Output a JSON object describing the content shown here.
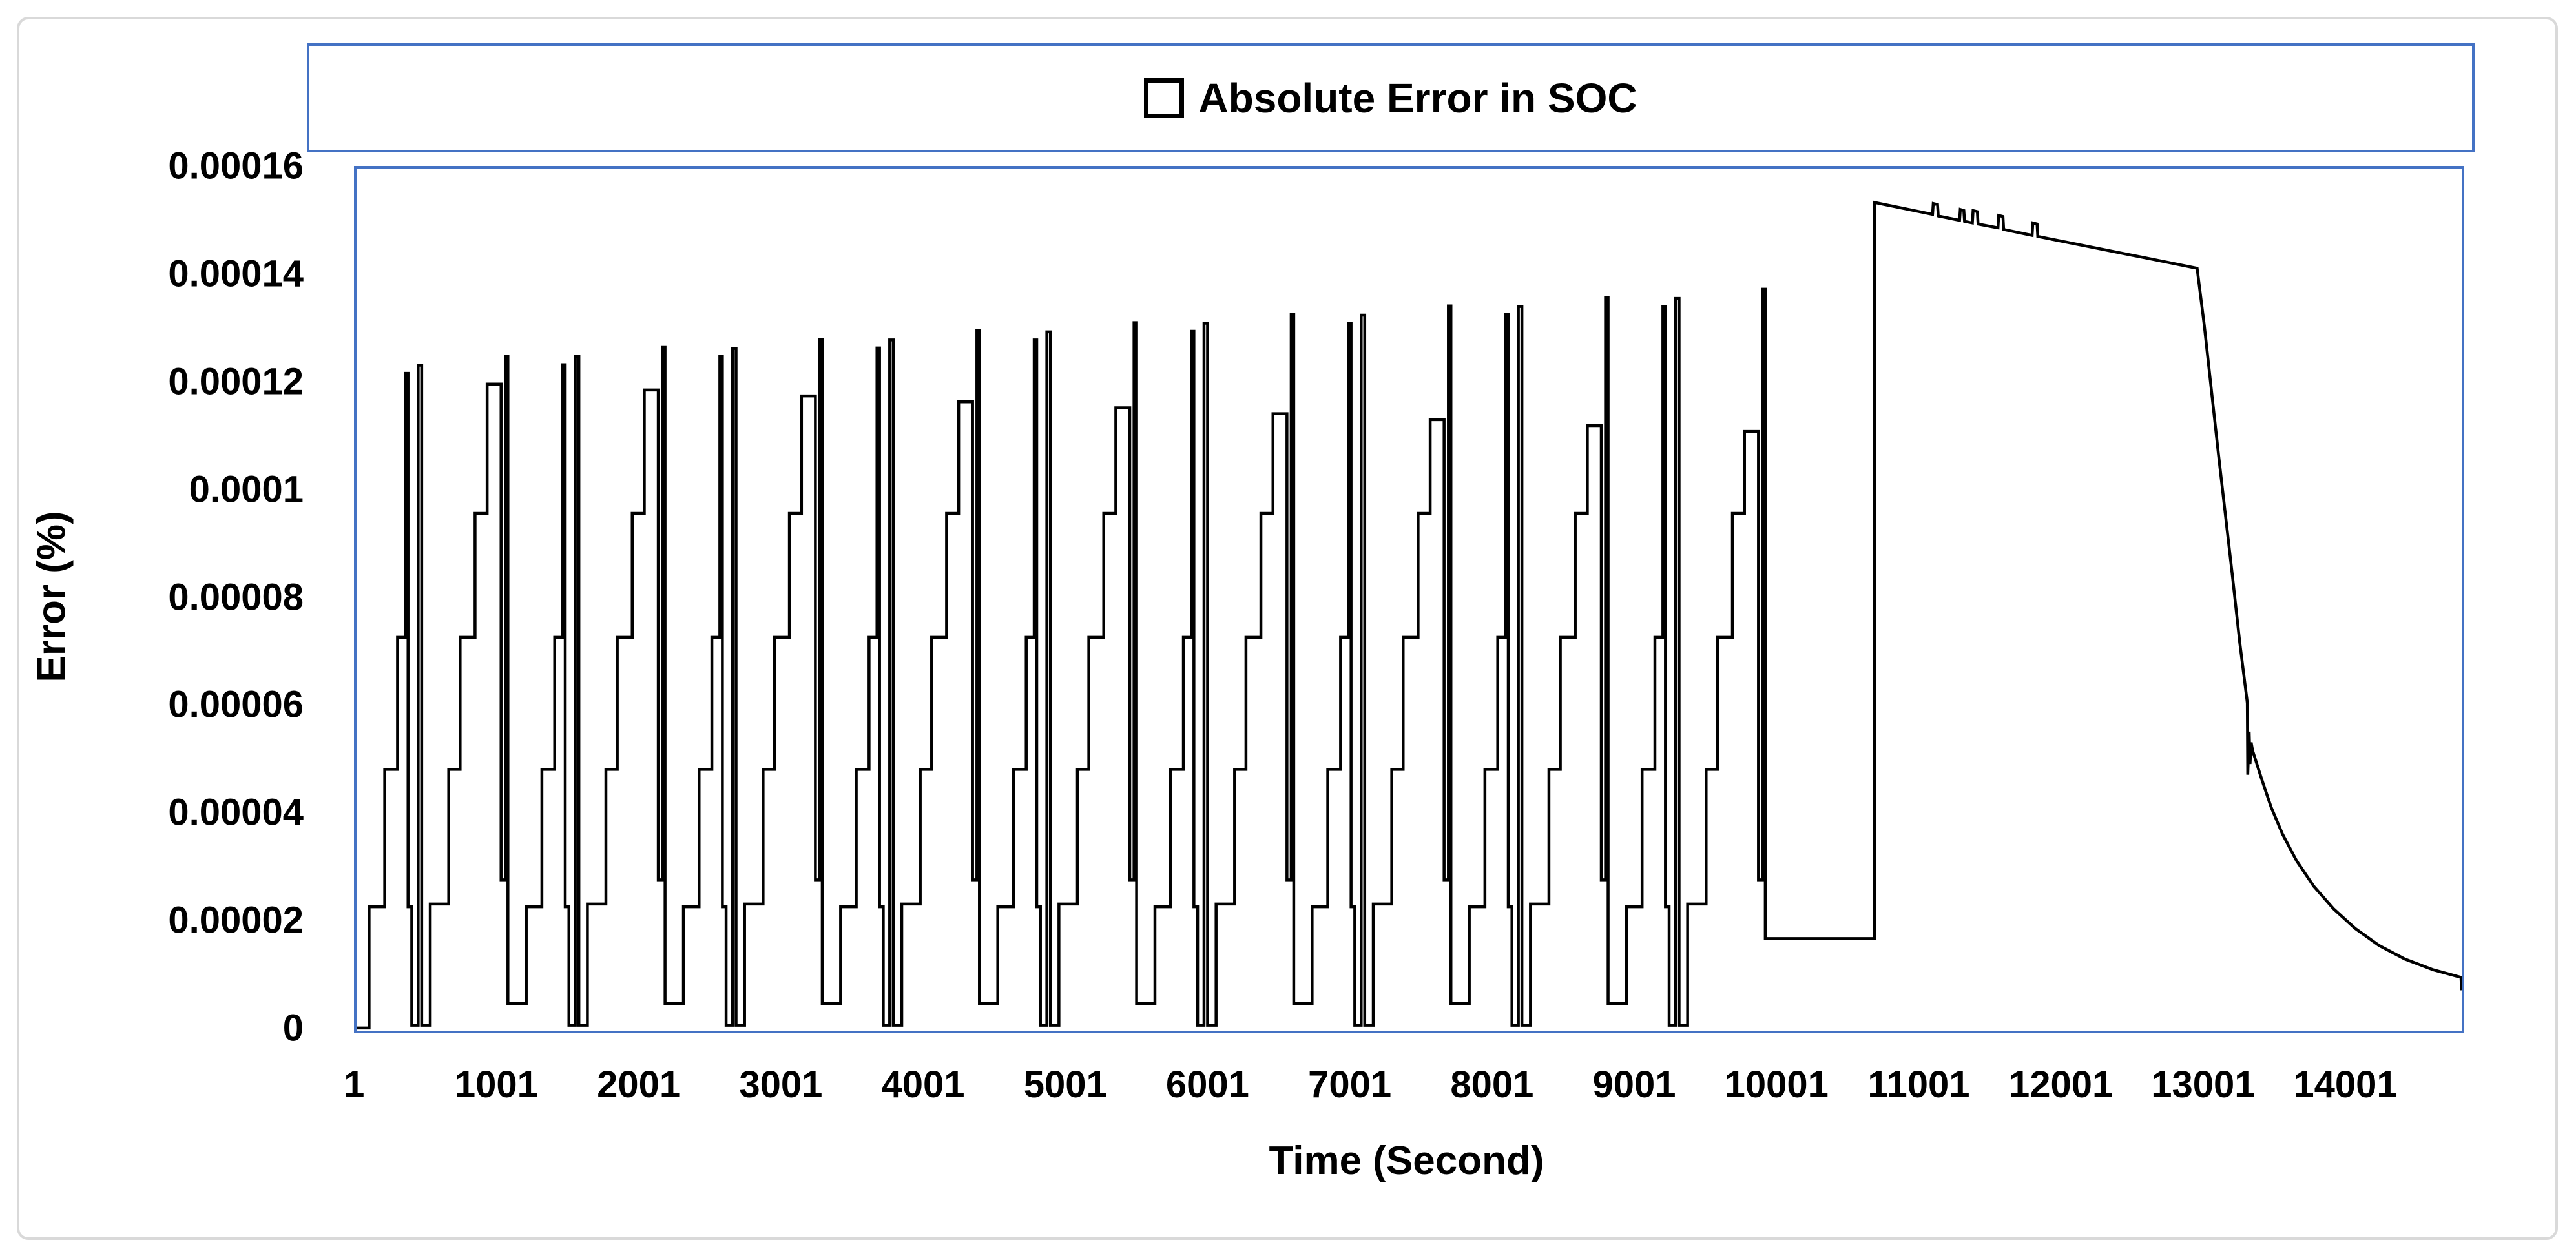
{
  "figure": {
    "background_color": "#ffffff",
    "frame_border_color": "#d9d9d9",
    "accent_color": "#4472C4",
    "line_color": "#000000",
    "text_color": "#000000"
  },
  "legend": {
    "marker": "open-square",
    "label": "Absolute Error in SOC"
  },
  "axes": {
    "y_title": "Error (%)",
    "x_title": "Time (Second)",
    "y_max_mu": 160,
    "x_max_s": 14800,
    "y_ticks": [
      {
        "label": "0",
        "mu": 0
      },
      {
        "label": "0.00002",
        "mu": 20
      },
      {
        "label": "0.00004",
        "mu": 40
      },
      {
        "label": "0.00006",
        "mu": 60
      },
      {
        "label": "0.00008",
        "mu": 80
      },
      {
        "label": "0.0001",
        "mu": 100
      },
      {
        "label": "0.00012",
        "mu": 120
      },
      {
        "label": "0.00014",
        "mu": 140
      },
      {
        "label": "0.00016",
        "mu": 160
      }
    ],
    "x_ticks": [
      {
        "label": "1",
        "s": 1
      },
      {
        "label": "1001",
        "s": 1001
      },
      {
        "label": "2001",
        "s": 2001
      },
      {
        "label": "3001",
        "s": 3001
      },
      {
        "label": "4001",
        "s": 4001
      },
      {
        "label": "5001",
        "s": 5001
      },
      {
        "label": "6001",
        "s": 6001
      },
      {
        "label": "7001",
        "s": 7001
      },
      {
        "label": "8001",
        "s": 8001
      },
      {
        "label": "9001",
        "s": 9001
      },
      {
        "label": "10001",
        "s": 10001
      },
      {
        "label": "11001",
        "s": 11001
      },
      {
        "label": "12001",
        "s": 12001
      },
      {
        "label": "13001",
        "s": 13001
      },
      {
        "label": "14001",
        "s": 14001
      }
    ]
  },
  "chart_data": {
    "type": "line",
    "title": "Absolute Error in SOC",
    "xlabel": "Time (Second)",
    "ylabel": "Error (%)",
    "x_range": [
      1,
      14800
    ],
    "ylim": [
      0,
      0.00016
    ],
    "grid": false,
    "legend_position": "top-center",
    "series_name": "Absolute Error in SOC",
    "units": {
      "x": "seconds",
      "y": "percent",
      "point_values": "micro-percent (1e-6 %)"
    },
    "pattern_description": "Nine repeating pulse-test clusters (~1105 s each): staircase rises (23, 48.5, 73, 96 u) with thin spikes whose peaks grow from 122u to 138u while wide plateaus shrink from 120u to 111u; after 10035 s the error sits flat at 17.1u, jumps at 10672 s to 153.7u, declines slowly to 141.5u by 12940 s (with tiny upward notches), then falls steeply with a small glitch near 13300 s and decays exponentially to about 8u at 14800 s. 1u = 1e-6 %.",
    "lead_points_mu": [
      [
        0,
        0.5
      ],
      [
        88,
        0.5
      ]
    ],
    "cluster_template": [
      [
        0,
        23
      ],
      [
        110,
        48.5
      ],
      [
        200,
        73
      ],
      [
        256,
        "pa"
      ],
      [
        274,
        23
      ],
      [
        300,
        1
      ],
      [
        345,
        "pb"
      ],
      [
        370,
        1
      ],
      [
        430,
        23.5
      ],
      [
        560,
        48.5
      ],
      [
        640,
        73
      ],
      [
        745,
        96
      ],
      [
        830,
        "pw"
      ],
      [
        928,
        28
      ],
      [
        958,
        "pc"
      ],
      [
        976,
        "end"
      ]
    ],
    "clusters": [
      {
        "t0": 88,
        "pa": 122.0,
        "pb": 123.5,
        "pc": 125.2,
        "pw": 120.0,
        "end": 5
      },
      {
        "t0": 1193,
        "pa": 123.6,
        "pb": 125.1,
        "pc": 126.8,
        "pw": 118.9,
        "end": 5
      },
      {
        "t0": 2298,
        "pa": 125.1,
        "pb": 126.6,
        "pc": 128.3,
        "pw": 117.8,
        "end": 5
      },
      {
        "t0": 3403,
        "pa": 126.7,
        "pb": 128.2,
        "pc": 129.9,
        "pw": 116.7,
        "end": 5
      },
      {
        "t0": 4508,
        "pa": 128.2,
        "pb": 129.7,
        "pc": 131.4,
        "pw": 115.6,
        "end": 5
      },
      {
        "t0": 5613,
        "pa": 129.8,
        "pb": 131.3,
        "pc": 133.0,
        "pw": 114.5,
        "end": 5
      },
      {
        "t0": 6718,
        "pa": 131.3,
        "pb": 132.8,
        "pc": 134.5,
        "pw": 113.4,
        "end": 5
      },
      {
        "t0": 7823,
        "pa": 132.9,
        "pb": 134.4,
        "pc": 136.1,
        "pw": 112.3,
        "end": 5
      },
      {
        "t0": 8928,
        "pa": 134.4,
        "pb": 135.9,
        "pc": 137.6,
        "pw": 111.2,
        "end": 17.1
      }
    ],
    "tail_points_mu": [
      [
        10672,
        153.7
      ],
      [
        10950,
        152.2
      ],
      [
        11080,
        151.5
      ],
      [
        11085,
        153.5
      ],
      [
        11115,
        153.3
      ],
      [
        11120,
        151.2
      ],
      [
        11270,
        150.4
      ],
      [
        11275,
        152.4
      ],
      [
        11300,
        152.2
      ],
      [
        11305,
        150.2
      ],
      [
        11360,
        149.9
      ],
      [
        11365,
        152.2
      ],
      [
        11395,
        152.0
      ],
      [
        11400,
        149.7
      ],
      [
        11540,
        149.0
      ],
      [
        11545,
        151.3
      ],
      [
        11575,
        151.1
      ],
      [
        11580,
        148.7
      ],
      [
        11780,
        147.6
      ],
      [
        11785,
        149.9
      ],
      [
        11815,
        149.7
      ],
      [
        11820,
        147.4
      ],
      [
        12200,
        145.4
      ],
      [
        12600,
        143.3
      ],
      [
        12940,
        141.5
      ],
      [
        12990,
        131.0
      ],
      [
        13040,
        119.0
      ],
      [
        13090,
        107.0
      ],
      [
        13140,
        95.5
      ],
      [
        13190,
        84.0
      ],
      [
        13240,
        72.0
      ],
      [
        13290,
        61.5
      ],
      [
        13293,
        60.8
      ],
      [
        13296,
        47.5
      ],
      [
        13306,
        55.5
      ],
      [
        13312,
        49.5
      ],
      [
        13320,
        53.5
      ],
      [
        13330,
        52.0
      ],
      [
        13390,
        47.0
      ],
      [
        13460,
        41.5
      ],
      [
        13540,
        36.5
      ],
      [
        13640,
        31.5
      ],
      [
        13760,
        26.8
      ],
      [
        13900,
        22.6
      ],
      [
        14050,
        19.0
      ],
      [
        14220,
        15.8
      ],
      [
        14400,
        13.3
      ],
      [
        14600,
        11.3
      ],
      [
        14795,
        9.9
      ],
      [
        14800,
        7.5
      ]
    ]
  }
}
